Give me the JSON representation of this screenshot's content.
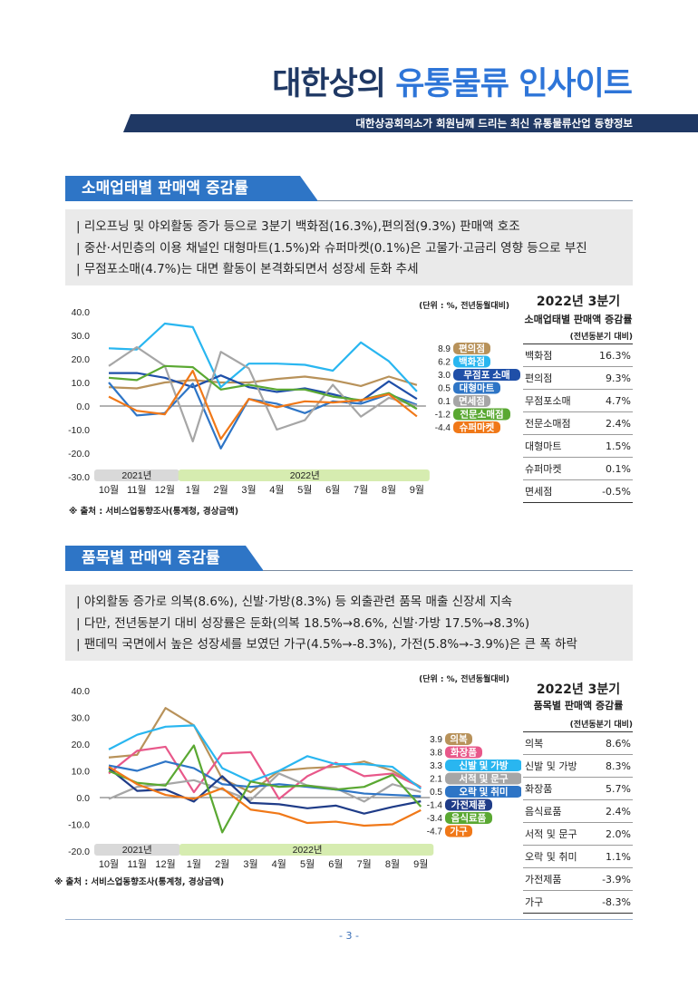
{
  "header": {
    "title_main": "대한상의 ",
    "title_accent": "유통물류 인사이트",
    "banner": "대한상공회의소가 회원님께 드리는 최신 유통물류산업 동향정보"
  },
  "section1": {
    "heading": "소매업태별 판매액 증감률",
    "summary": [
      "| 리오프닝 및 야외활동 증가 등으로 3분기 백화점(16.3%),편의점(9.3%) 판매액 호조",
      "| 중산·서민층의 이용 채널인 대형마트(1.5%)와 슈퍼마켓(0.1%)은 고물가·고금리 영향 등으로 부진",
      "| 무점포소매(4.7%)는 대면 활동이 본격화되면서 성장세 둔화 추세"
    ],
    "unit": "(단위 : %, 전년동월대비)",
    "source": "※ 출처 : 서비스업동향조사(통계청, 경상금액)",
    "table": {
      "title": "2022년 3분기",
      "subtitle": "소매업태별 판매액  증감률",
      "unit": "(전년동분기 대비)",
      "rows": [
        {
          "label": "백화점",
          "value": "16.3%"
        },
        {
          "label": "편의점",
          "value": "9.3%"
        },
        {
          "label": "무점포소매",
          "value": "4.7%"
        },
        {
          "label": "전문소매점",
          "value": "2.4%"
        },
        {
          "label": "대형마트",
          "value": "1.5%"
        },
        {
          "label": "슈퍼마켓",
          "value": "0.1%"
        },
        {
          "label": "면세점",
          "value": "-0.5%"
        }
      ]
    }
  },
  "section2": {
    "heading": "품목별 판매액 증감률",
    "summary": [
      "| 야외활동 증가로 의복(8.6%), 신발·가방(8.3%) 등 외출관련 품목 매출 신장세 지속",
      "| 다만, 전년동분기 대비 성장률은 둔화(의복 18.5%→8.6%, 신발·가방 17.5%→8.3%)",
      "| 팬데믹 국면에서 높은 성장세를 보였던 가구(4.5%→-8.3%), 가전(5.8%→-3.9%)은 큰 폭 하락"
    ],
    "unit": "(단위 : %, 전년동월대비)",
    "source": "※ 출처 : 서비스업동향조사(통계청, 경상금액)",
    "table": {
      "title": "2022년 3분기",
      "subtitle": "품목별 판매액 증감률",
      "unit": "(전년동분기 대비)",
      "rows": [
        {
          "label": "의복",
          "value": "8.6%"
        },
        {
          "label": "신발 및 가방",
          "value": "8.3%"
        },
        {
          "label": "화장품",
          "value": "5.7%"
        },
        {
          "label": "음식료품",
          "value": "2.4%"
        },
        {
          "label": "서적 및 문구",
          "value": "2.0%"
        },
        {
          "label": "오락 및 취미",
          "value": "1.1%"
        },
        {
          "label": "가전제품",
          "value": "-3.9%"
        },
        {
          "label": "가구",
          "value": "-8.3%"
        }
      ]
    }
  },
  "page_number": "- 3 -",
  "chart_data": [
    {
      "type": "line",
      "x": [
        "10월",
        "11월",
        "12월",
        "1월",
        "2월",
        "3월",
        "4월",
        "5월",
        "6월",
        "7월",
        "8월",
        "9월"
      ],
      "year_labels": [
        "2021년",
        "2022년"
      ],
      "ylim": [
        -30,
        40
      ],
      "yticks": [
        "40.0",
        "30.0",
        "20.0",
        "10.0",
        "0.0",
        "-10.0",
        "-20.0",
        "-30.0"
      ],
      "series": [
        {
          "name": "편의점",
          "label": "8.9",
          "color": "#b8925a",
          "values": [
            8,
            7.5,
            10,
            11,
            10,
            10,
            11.5,
            12.5,
            11,
            8.5,
            12.5,
            8.9
          ]
        },
        {
          "name": "백화점",
          "label": "6.2",
          "color": "#29b6f0",
          "values": [
            24.5,
            24,
            35,
            33.5,
            8,
            18,
            18,
            17.5,
            15,
            27,
            19,
            6.2
          ]
        },
        {
          "name": "무점포 소매",
          "label": "3.0",
          "color": "#1f4fa8",
          "values": [
            14,
            14,
            12,
            8,
            13,
            8,
            6,
            7.5,
            5,
            2,
            10.5,
            3.0
          ]
        },
        {
          "name": "대형마트",
          "label": "0.5",
          "color": "#2e75c6",
          "values": [
            10,
            -4,
            -3,
            9.5,
            -18,
            3,
            1,
            -3,
            2,
            1,
            5,
            0.5
          ]
        },
        {
          "name": "면세점",
          "label": "0.1",
          "color": "#a6a6a6",
          "values": [
            17,
            25,
            17,
            -15,
            23,
            16,
            -10,
            -6,
            9,
            -4.5,
            3.5,
            0.1
          ]
        },
        {
          "name": "전문소매점",
          "label": "-1.2",
          "color": "#5aa832",
          "values": [
            12,
            11,
            17,
            16.5,
            7,
            9,
            7,
            7,
            4,
            2.5,
            5.5,
            -1.2
          ]
        },
        {
          "name": "슈퍼마켓",
          "label": "-4.4",
          "color": "#f07818",
          "values": [
            4,
            -2,
            -3.5,
            15,
            -14,
            3,
            -0.5,
            2,
            1.5,
            2.5,
            5,
            -4.4
          ]
        }
      ]
    },
    {
      "type": "line",
      "x": [
        "10월",
        "11월",
        "12월",
        "1월",
        "2월",
        "3월",
        "4월",
        "5월",
        "6월",
        "7월",
        "8월",
        "9월"
      ],
      "year_labels": [
        "2021년",
        "2022년"
      ],
      "ylim": [
        -20,
        40
      ],
      "yticks": [
        "40.0",
        "30.0",
        "20.0",
        "10.0",
        "0.0",
        "-10.0",
        "-20.0"
      ],
      "series": [
        {
          "name": "의복",
          "label": "3.9",
          "color": "#b8925a",
          "values": [
            15,
            16,
            33.5,
            27,
            7,
            2,
            10,
            11,
            11.5,
            13.5,
            10,
            3.9
          ]
        },
        {
          "name": "화장품",
          "label": "3.8",
          "color": "#e8588a",
          "values": [
            9,
            17.5,
            19,
            2,
            16.5,
            17,
            -0.5,
            8,
            13,
            8,
            9,
            3.8
          ]
        },
        {
          "name": "신발 및 가방",
          "label": "3.3",
          "color": "#29b6f0",
          "values": [
            18,
            23.5,
            26.5,
            27,
            11,
            6,
            10,
            15.5,
            12.5,
            12.5,
            11.5,
            3.3
          ]
        },
        {
          "name": "서적 및 문구",
          "label": "2.1",
          "color": "#a6a6a6",
          "values": [
            -0.5,
            4,
            5,
            6.5,
            3,
            -1,
            9,
            4.5,
            3.5,
            -1.5,
            5,
            2.1
          ]
        },
        {
          "name": "오락 및 취미",
          "label": "0.5",
          "color": "#2e75c6",
          "values": [
            12,
            10,
            13.5,
            11,
            5,
            4,
            5,
            4,
            3,
            1.5,
            1,
            0.5
          ]
        },
        {
          "name": "가전제품",
          "label": "-1.4",
          "color": "#1f3c88",
          "values": [
            11,
            2.5,
            3,
            -1.5,
            8,
            -2,
            -2.5,
            -4,
            -3,
            -6,
            -3.5,
            -1.4
          ]
        },
        {
          "name": "음식료품",
          "label": "-3.4",
          "color": "#5aa832",
          "values": [
            10,
            5.5,
            4.5,
            19.5,
            -13,
            6,
            4,
            4.5,
            3,
            4,
            8.5,
            -3.4
          ]
        },
        {
          "name": "가구",
          "label": "-4.7",
          "color": "#f07818",
          "values": [
            11.5,
            5,
            1,
            -0.5,
            3.5,
            -4.5,
            -6,
            -9.5,
            -9,
            -10.5,
            -10,
            -4.7
          ]
        }
      ]
    }
  ]
}
